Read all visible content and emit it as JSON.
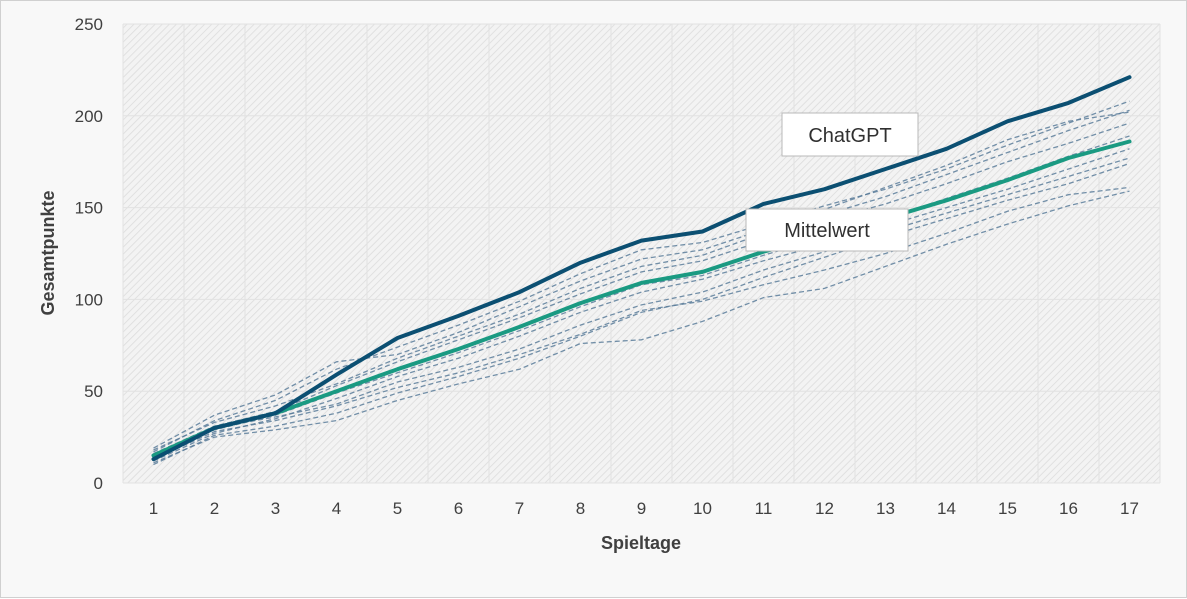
{
  "chart_data": {
    "type": "line",
    "xlabel": "Spieltage",
    "ylabel": "Gesamtpunkte",
    "categories": [
      "1",
      "2",
      "3",
      "4",
      "5",
      "6",
      "7",
      "8",
      "9",
      "10",
      "11",
      "12",
      "13",
      "14",
      "15",
      "16",
      "17"
    ],
    "y_ticks": [
      "0",
      "50",
      "100",
      "150",
      "200",
      "250"
    ],
    "ylim": [
      0,
      250
    ],
    "grid": true,
    "colors": {
      "chatgpt": "#0b4f72",
      "mittelwert": "#1a9a82",
      "others": "#5a7d9a"
    },
    "series": [
      {
        "name": "ChatGPT",
        "values": [
          13,
          30,
          38,
          59,
          79,
          91,
          104,
          120,
          132,
          137,
          152,
          160,
          171,
          182,
          197,
          207,
          221
        ]
      },
      {
        "name": "Mittelwert",
        "values": [
          15,
          30,
          38,
          50,
          62,
          73,
          85,
          98,
          109,
          115,
          126,
          135,
          144,
          154,
          165,
          177,
          186
        ]
      }
    ],
    "other_series": [
      {
        "values": [
          18,
          33,
          42,
          54,
          68,
          80,
          92,
          106,
          118,
          124,
          136,
          146,
          156,
          168,
          180,
          192,
          203
        ]
      },
      {
        "values": [
          16,
          31,
          39,
          53,
          66,
          78,
          90,
          103,
          115,
          121,
          132,
          143,
          152,
          163,
          175,
          185,
          196
        ]
      },
      {
        "values": [
          12,
          27,
          35,
          46,
          58,
          68,
          80,
          93,
          104,
          111,
          121,
          130,
          140,
          150,
          160,
          171,
          182
        ]
      },
      {
        "values": [
          10,
          26,
          31,
          38,
          49,
          58,
          68,
          80,
          93,
          100,
          112,
          123,
          134,
          144,
          154,
          163,
          174
        ]
      },
      {
        "values": [
          14,
          30,
          36,
          43,
          55,
          63,
          73,
          86,
          97,
          104,
          116,
          126,
          137,
          147,
          157,
          167,
          177
        ]
      },
      {
        "values": [
          11,
          25,
          29,
          34,
          45,
          54,
          62,
          76,
          78,
          88,
          101,
          106,
          118,
          130,
          141,
          151,
          159
        ]
      },
      {
        "values": [
          17,
          34,
          45,
          62,
          74,
          86,
          99,
          114,
          127,
          131,
          141,
          151,
          160,
          171,
          184,
          196,
          208
        ]
      },
      {
        "values": [
          13,
          28,
          34,
          42,
          52,
          60,
          70,
          81,
          94,
          99,
          108,
          116,
          125,
          136,
          148,
          157,
          161
        ]
      },
      {
        "values": [
          19,
          37,
          48,
          66,
          70,
          82,
          96,
          110,
          122,
          127,
          138,
          149,
          161,
          173,
          187,
          197,
          202
        ]
      },
      {
        "values": [
          15,
          29,
          37,
          49,
          60,
          71,
          83,
          96,
          108,
          113,
          124,
          134,
          144,
          155,
          166,
          178,
          189
        ]
      }
    ],
    "annotations": [
      {
        "text": "ChatGPT",
        "target_series": "ChatGPT"
      },
      {
        "text": "Mittelwert",
        "target_series": "Mittelwert"
      }
    ]
  }
}
